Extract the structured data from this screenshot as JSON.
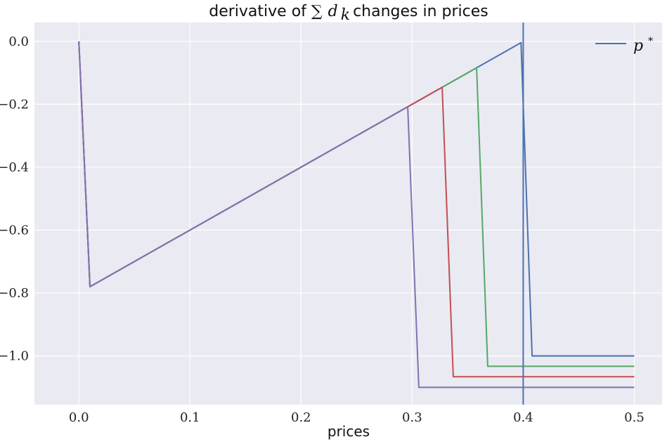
{
  "chart_data": {
    "type": "line",
    "title": "derivative of ∑ d_k changes in prices",
    "title_parts": {
      "prefix": "derivative of ",
      "sum_symbol": "∑",
      "var": "d",
      "subscript": "k",
      "suffix": " changes in prices"
    },
    "xlabel": "prices",
    "ylabel": "",
    "xlim": [
      -0.04,
      0.525
    ],
    "ylim": [
      -1.155,
      0.06
    ],
    "x_ticks": [
      0.0,
      0.1,
      0.2,
      0.3,
      0.4,
      0.5
    ],
    "x_tick_labels": [
      "0.0",
      "0.1",
      "0.2",
      "0.3",
      "0.4",
      "0.5"
    ],
    "y_ticks": [
      0.0,
      -0.2,
      -0.4,
      -0.6,
      -0.8,
      -1.0
    ],
    "y_tick_labels": [
      "0.0",
      "−0.2",
      "−0.4",
      "−0.6",
      "−0.8",
      "−1.0"
    ],
    "grid": true,
    "background": "#eaeaf2",
    "legend": {
      "placement": "top-right",
      "entries": [
        {
          "label": "p*",
          "base": "p",
          "sup": "*",
          "color": "#4c72b0"
        }
      ]
    },
    "vline": {
      "x": 0.4,
      "color": "#4c72b0"
    },
    "series": [
      {
        "color": "#4c72b0",
        "x": [
          0.0,
          0.01,
          0.398,
          0.408,
          0.5
        ],
        "y": [
          0.0,
          -0.78,
          -0.004,
          -1.0,
          -1.0
        ]
      },
      {
        "color": "#55a868",
        "x": [
          0.0,
          0.01,
          0.358,
          0.368,
          0.5
        ],
        "y": [
          0.0,
          -0.78,
          -0.084,
          -1.033,
          -1.033
        ]
      },
      {
        "color": "#c44e52",
        "x": [
          0.0,
          0.01,
          0.327,
          0.337,
          0.5
        ],
        "y": [
          0.0,
          -0.78,
          -0.146,
          -1.066,
          -1.066
        ]
      },
      {
        "color": "#8172b2",
        "x": [
          0.0,
          0.01,
          0.296,
          0.306,
          0.5
        ],
        "y": [
          0.0,
          -0.78,
          -0.208,
          -1.1,
          -1.1
        ]
      }
    ]
  }
}
